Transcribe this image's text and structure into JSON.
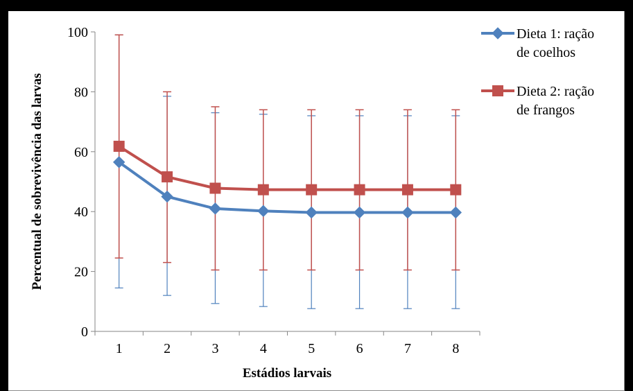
{
  "chart_data": {
    "type": "line",
    "title": "",
    "xlabel": "Estádios larvais",
    "ylabel": "Percentual de sobrevivência das larvas",
    "categories": [
      "1",
      "2",
      "3",
      "4",
      "5",
      "6",
      "7",
      "8"
    ],
    "ylim": [
      0,
      100
    ],
    "yticks": [
      "0",
      "20",
      "40",
      "60",
      "80",
      "100"
    ],
    "grid": false,
    "legend_position": "top-right",
    "series": [
      {
        "name": "Dieta 1: ração de coelhos",
        "legend_lines": [
          "Dieta 1: ração",
          "de coelhos"
        ],
        "color": "#4f81bd",
        "marker": "diamond",
        "values": [
          56.5,
          45,
          41,
          40.2,
          39.7,
          39.7,
          39.7,
          39.7
        ],
        "err_upper": [
          99,
          78.5,
          73,
          72.5,
          72,
          72,
          72,
          72
        ],
        "err_lower": [
          14.5,
          12,
          9.3,
          8.3,
          7.6,
          7.6,
          7.6,
          7.6
        ]
      },
      {
        "name": "Dieta 2: ração de frangos",
        "legend_lines": [
          "Dieta 2: ração",
          "de frangos"
        ],
        "color": "#c0504d",
        "marker": "square",
        "values": [
          61.8,
          51.6,
          47.8,
          47.3,
          47.3,
          47.3,
          47.3,
          47.3
        ],
        "err_upper": [
          99,
          80,
          75,
          74,
          74,
          74,
          74,
          74
        ],
        "err_lower": [
          24.5,
          23,
          20.5,
          20.5,
          20.5,
          20.5,
          20.5,
          20.5
        ]
      }
    ]
  }
}
